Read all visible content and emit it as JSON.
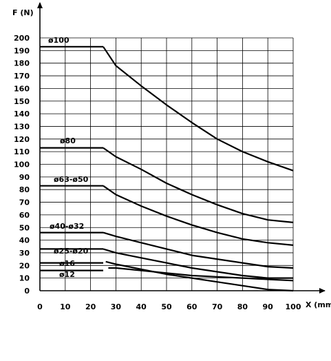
{
  "chart_data": {
    "type": "line",
    "ylabel": "F (N)",
    "xlabel": "X (mm)",
    "xlim": [
      0,
      100
    ],
    "ylim": [
      0,
      200
    ],
    "grid": true,
    "x_ticks": [
      "0",
      "10",
      "20",
      "30",
      "40",
      "50",
      "60",
      "70",
      "80",
      "90",
      "100"
    ],
    "y_ticks": [
      "0",
      "10",
      "20",
      "30",
      "40",
      "50",
      "60",
      "70",
      "80",
      "90",
      "100",
      "110",
      "120",
      "130",
      "140",
      "150",
      "160",
      "170",
      "180",
      "190",
      "200"
    ],
    "series": [
      {
        "name": "ø100",
        "segments": [
          [
            [
              0,
              193
            ],
            [
              25,
              193
            ]
          ],
          [
            [
              25,
              193
            ],
            [
              30,
              178
            ],
            [
              40,
              162
            ],
            [
              50,
              147
            ],
            [
              60,
              133
            ],
            [
              70,
              120
            ],
            [
              80,
              110
            ],
            [
              90,
              102
            ],
            [
              100,
              95
            ]
          ]
        ]
      },
      {
        "name": "ø80",
        "segments": [
          [
            [
              0,
              113
            ],
            [
              25,
              113
            ]
          ],
          [
            [
              25,
              113
            ],
            [
              30,
              106
            ],
            [
              40,
              96
            ],
            [
              50,
              85
            ],
            [
              60,
              76
            ],
            [
              70,
              68
            ],
            [
              80,
              61
            ],
            [
              90,
              56
            ],
            [
              100,
              54
            ]
          ]
        ]
      },
      {
        "name": "ø63-ø50",
        "segments": [
          [
            [
              0,
              83
            ],
            [
              25,
              83
            ]
          ],
          [
            [
              25,
              83
            ],
            [
              30,
              76
            ],
            [
              40,
              67
            ],
            [
              50,
              59
            ],
            [
              60,
              52
            ],
            [
              70,
              46
            ],
            [
              80,
              41
            ],
            [
              90,
              38
            ],
            [
              100,
              36
            ]
          ]
        ]
      },
      {
        "name": "ø40-ø32",
        "segments": [
          [
            [
              0,
              46
            ],
            [
              25,
              46
            ]
          ],
          [
            [
              25,
              46
            ],
            [
              30,
              43
            ],
            [
              40,
              38
            ],
            [
              50,
              33
            ],
            [
              60,
              28
            ],
            [
              70,
              25
            ],
            [
              80,
              22
            ],
            [
              90,
              19
            ],
            [
              100,
              18
            ]
          ]
        ]
      },
      {
        "name": "ø25-ø20",
        "segments": [
          [
            [
              0,
              33
            ],
            [
              25,
              33
            ]
          ],
          [
            [
              25,
              33
            ],
            [
              30,
              30
            ],
            [
              40,
              26
            ],
            [
              50,
              22
            ],
            [
              60,
              18
            ],
            [
              70,
              15
            ],
            [
              80,
              12
            ],
            [
              90,
              10
            ],
            [
              100,
              10
            ]
          ]
        ]
      },
      {
        "name": "ø16",
        "segments": [
          [
            [
              0,
              22
            ],
            [
              25,
              22
            ]
          ],
          [
            [
              26,
              23
            ],
            [
              30,
              21
            ],
            [
              40,
              17
            ],
            [
              50,
              13
            ],
            [
              60,
              10
            ],
            [
              70,
              7
            ],
            [
              80,
              4
            ],
            [
              90,
              1
            ],
            [
              100,
              0
            ]
          ]
        ]
      },
      {
        "name": "ø12",
        "segments": [
          [
            [
              0,
              16
            ],
            [
              25,
              16
            ]
          ],
          [
            [
              27,
              18
            ],
            [
              30,
              18
            ],
            [
              40,
              16
            ],
            [
              50,
              14
            ],
            [
              60,
              12
            ],
            [
              70,
              11
            ],
            [
              80,
              10
            ],
            [
              90,
              9
            ],
            [
              100,
              8
            ]
          ]
        ]
      }
    ]
  }
}
